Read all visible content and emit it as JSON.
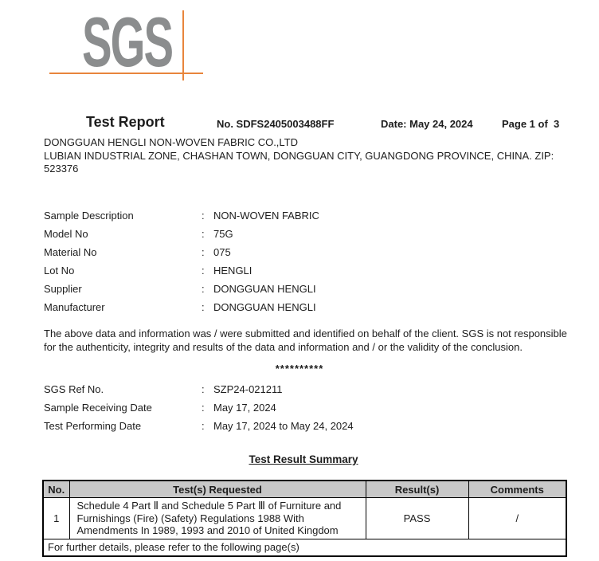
{
  "logo": {
    "text": "SGS"
  },
  "colors": {
    "logo_gray": "#8b8d8e",
    "accent_orange": "#e8853c",
    "table_header_bg": "#c8c8c8"
  },
  "punct": {
    "colon": ":"
  },
  "header": {
    "title": "Test Report",
    "report_no": "No. SDFS2405003488FF",
    "date": "Date: May 24, 2024",
    "page": "Page 1 of  3"
  },
  "client": {
    "lines": [
      "DONGGUAN HENGLI NON-WOVEN FABRIC CO.,LTD",
      "LUBIAN INDUSTRIAL ZONE, CHASHAN TOWN, DONGGUAN CITY, GUANGDONG PROVINCE, CHINA. ZIP:",
      "523376"
    ]
  },
  "sample_fields": [
    {
      "label": "Sample Description",
      "value": "NON-WOVEN FABRIC"
    },
    {
      "label": "Model No",
      "value": "75G"
    },
    {
      "label": "Material No",
      "value": "075"
    },
    {
      "label": "Lot No",
      "value": "HENGLI"
    },
    {
      "label": "Supplier",
      "value": "DONGGUAN HENGLI"
    },
    {
      "label": "Manufacturer",
      "value": "DONGGUAN HENGLI"
    }
  ],
  "disclaimer": {
    "lines": [
      "The above data and information was / were submitted and identified on behalf of the client. SGS is not responsible",
      "for the authenticity, integrity and results of the data and information and / or the validity of the conclusion."
    ]
  },
  "separator": "**********",
  "ref_fields": [
    {
      "label": "SGS Ref No.",
      "value": "SZP24-021211"
    },
    {
      "label": "Sample Receiving Date",
      "value": "May 17, 2024"
    },
    {
      "label": "Test Performing Date",
      "value": "May 17, 2024 to May 24, 2024"
    }
  ],
  "summary": {
    "title": "Test Result Summary",
    "table": {
      "headers": [
        "No.",
        "Test(s) Requested",
        "Result(s)",
        "Comments"
      ],
      "rows": [
        {
          "no": "1",
          "test": "Schedule 4 Part Ⅱ and Schedule 5 Part Ⅲ of Furniture and Furnishings (Fire) (Safety) Regulations 1988 With Amendments In 1989, 1993 and 2010 of United Kingdom",
          "result": "PASS",
          "comments": "/"
        }
      ],
      "footer": "For further details, please refer to the following page(s)"
    }
  }
}
